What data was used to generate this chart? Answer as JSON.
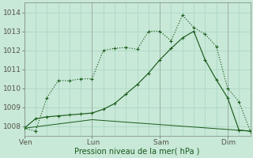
{
  "xlabel": "Pression niveau de la mer( hPa )",
  "bg_color": "#c8e8d8",
  "grid_color": "#a8d4c0",
  "line_color": "#1a5c1a",
  "ylim": [
    1007.5,
    1014.5
  ],
  "yticks": [
    1008,
    1009,
    1010,
    1011,
    1012,
    1013,
    1014
  ],
  "xtick_labels": [
    " Ven",
    " Lun",
    " Sam",
    " Dim"
  ],
  "xtick_positions": [
    0,
    6,
    12,
    18
  ],
  "n_points": 21,
  "series1_x": [
    0,
    1,
    2,
    3,
    4,
    5,
    6,
    7,
    8,
    9,
    10,
    11,
    12,
    13,
    14,
    15,
    16,
    17,
    18,
    19,
    20
  ],
  "series1_y": [
    1007.9,
    1007.75,
    1009.5,
    1010.4,
    1010.4,
    1010.5,
    1010.5,
    1012.0,
    1012.1,
    1012.15,
    1012.05,
    1013.0,
    1013.0,
    1012.5,
    1013.85,
    1013.2,
    1012.85,
    1012.2,
    1010.0,
    1009.3,
    1007.75
  ],
  "series2_x": [
    0,
    1,
    2,
    3,
    4,
    5,
    6,
    7,
    8,
    9,
    10,
    11,
    12,
    13,
    14,
    15,
    16,
    17,
    18,
    19,
    20
  ],
  "series2_y": [
    1007.9,
    1008.4,
    1008.5,
    1008.55,
    1008.6,
    1008.65,
    1008.7,
    1008.9,
    1009.2,
    1009.7,
    1010.2,
    1010.8,
    1011.5,
    1012.1,
    1012.65,
    1013.0,
    1011.5,
    1010.45,
    1009.5,
    1007.8,
    1007.75
  ],
  "series3_x": [
    0,
    6,
    20
  ],
  "series3_y": [
    1007.9,
    1008.35,
    1007.75
  ],
  "xlim": [
    0,
    20
  ]
}
